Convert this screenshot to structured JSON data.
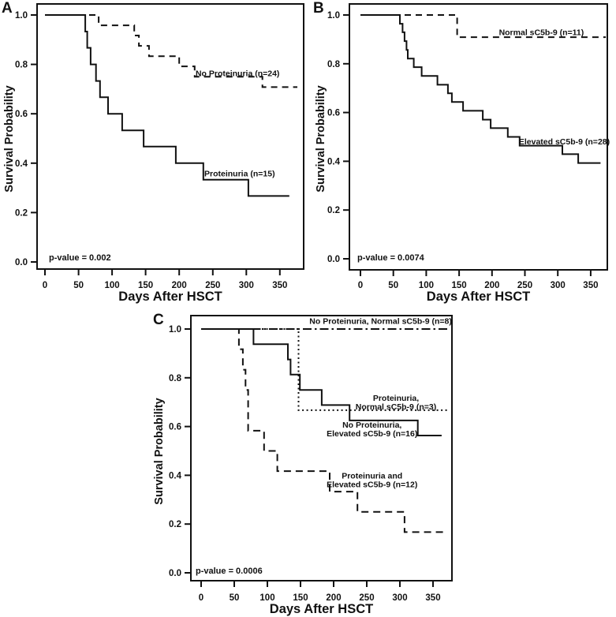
{
  "figure": {
    "description": "Kaplan-Meier survival curves after HSCT, three panels",
    "background_color": "#ffffff",
    "line_color": "#111111"
  },
  "chart_data": [
    {
      "panel": "A",
      "type": "line",
      "subtype": "kaplan-meier-step",
      "xlabel": "Days After HSCT",
      "ylabel": "Survival Probability",
      "x_ticks": [
        0,
        50,
        100,
        150,
        200,
        250,
        300,
        350
      ],
      "y_tick_labels": [
        "1.0",
        "0.8",
        "0.6",
        "0.4",
        "0.2",
        "0.0"
      ],
      "xlim": [
        0,
        385
      ],
      "ylim": [
        0.0,
        1.0
      ],
      "grid": false,
      "legend_position": "inline-annotations",
      "p_value_text": "p-value = 0.002",
      "series": [
        {
          "name": "No Proteinuria",
          "n": 24,
          "style": "dashed",
          "label_lines": [
            "No Proteinuria (n=24)"
          ],
          "label_pos": {
            "day": 287,
            "survival": 0.765
          },
          "start": [
            0,
            1.0
          ],
          "steps": [
            [
              80,
              0.958
            ],
            [
              133,
              0.917
            ],
            [
              140,
              0.875
            ],
            [
              155,
              0.833
            ],
            [
              200,
              0.792
            ],
            [
              223,
              0.75
            ],
            [
              324,
              0.708
            ]
          ],
          "end_day": 376
        },
        {
          "name": "Proteinuria",
          "n": 15,
          "style": "solid",
          "label_lines": [
            "Proteinuria (n=15)"
          ],
          "label_pos": {
            "day": 290,
            "survival": 0.358
          },
          "start": [
            0,
            1.0
          ],
          "steps": [
            [
              60,
              0.933
            ],
            [
              63,
              0.867
            ],
            [
              68,
              0.8
            ],
            [
              76,
              0.733
            ],
            [
              82,
              0.667
            ],
            [
              94,
              0.6
            ],
            [
              115,
              0.533
            ],
            [
              147,
              0.467
            ],
            [
              195,
              0.4
            ],
            [
              236,
              0.333
            ],
            [
              303,
              0.267
            ]
          ],
          "end_day": 364
        }
      ]
    },
    {
      "panel": "B",
      "type": "line",
      "subtype": "kaplan-meier-step",
      "xlabel": "Days After HSCT",
      "ylabel": "Survival Probability",
      "x_ticks": [
        0,
        50,
        100,
        150,
        200,
        250,
        300,
        350
      ],
      "y_tick_labels": [
        "1.0",
        "0.8",
        "0.6",
        "0.4",
        "0.2",
        "0.0"
      ],
      "xlim": [
        0,
        385
      ],
      "ylim": [
        0.0,
        1.0
      ],
      "grid": false,
      "legend_position": "inline-annotations",
      "p_value_text": "p-value = 0.0074",
      "series": [
        {
          "name": "Normal sC5b-9",
          "n": 11,
          "style": "dashed",
          "label_lines": [
            "Normal sC5b-9 (n=11)"
          ],
          "label_pos": {
            "day": 275,
            "survival": 0.929
          },
          "start": [
            0,
            1.0
          ],
          "steps": [
            [
              147,
              0.909
            ]
          ],
          "end_day": 373
        },
        {
          "name": "Elevated sC5b-9",
          "n": 28,
          "style": "solid",
          "label_lines": [
            "Elevated sC5b-9 (n=28)"
          ],
          "label_pos": {
            "day": 310,
            "survival": 0.482
          },
          "start": [
            0,
            1.0
          ],
          "steps": [
            [
              60,
              0.964
            ],
            [
              64,
              0.929
            ],
            [
              67,
              0.893
            ],
            [
              70,
              0.857
            ],
            [
              72,
              0.821
            ],
            [
              81,
              0.786
            ],
            [
              93,
              0.75
            ],
            [
              117,
              0.714
            ],
            [
              133,
              0.679
            ],
            [
              139,
              0.643
            ],
            [
              156,
              0.607
            ],
            [
              186,
              0.571
            ],
            [
              198,
              0.536
            ],
            [
              224,
              0.5
            ],
            [
              242,
              0.464
            ],
            [
              307,
              0.429
            ],
            [
              331,
              0.393
            ]
          ],
          "end_day": 365
        }
      ]
    },
    {
      "panel": "C",
      "type": "line",
      "subtype": "kaplan-meier-step",
      "xlabel": "Days After HSCT",
      "ylabel": "Survival Probability",
      "x_ticks": [
        0,
        50,
        100,
        150,
        200,
        250,
        300,
        350
      ],
      "y_tick_labels": [
        "1.0",
        "0.8",
        "0.6",
        "0.4",
        "0.2",
        "0.0"
      ],
      "xlim": [
        0,
        385
      ],
      "ylim": [
        0.0,
        1.0
      ],
      "grid": false,
      "legend_position": "inline-annotations",
      "p_value_text": "p-value = 0.0006",
      "series": [
        {
          "name": "No Proteinuria, Normal sC5b-9",
          "n": 8,
          "style": "dashdot",
          "label_lines": [
            "No Proteinuria, Normal sC5b-9 (n=8)"
          ],
          "label_pos": {
            "day": 271,
            "survival": 1.034
          },
          "start": [
            0,
            1.0
          ],
          "steps": [],
          "end_day": 375
        },
        {
          "name": "Proteinuria, Normal sC5b-9",
          "n": 3,
          "style": "dotted",
          "label_lines": [
            "Proteinuria,",
            "Normal sC5b-9 (n=3)"
          ],
          "label_pos": {
            "day": 294,
            "survival": 0.7
          },
          "start": [
            0,
            1.0
          ],
          "steps": [
            [
              147,
              0.667
            ]
          ],
          "end_day": 372
        },
        {
          "name": "No Proteinuria, Elevated sC5b-9",
          "n": 16,
          "style": "solid",
          "label_lines": [
            "No Proteinuria,",
            "Elevated sC5b-9 (n=16)"
          ],
          "label_pos": {
            "day": 258,
            "survival": 0.59
          },
          "start": [
            0,
            1.0
          ],
          "steps": [
            [
              79,
              0.938
            ],
            [
              131,
              0.875
            ],
            [
              135,
              0.813
            ],
            [
              149,
              0.75
            ],
            [
              182,
              0.688
            ],
            [
              224,
              0.625
            ],
            [
              327,
              0.563
            ]
          ],
          "end_day": 363
        },
        {
          "name": "Proteinuria and Elevated sC5b-9",
          "n": 12,
          "style": "longdash",
          "label_lines": [
            "Proteinuria and",
            "Elevated sC5b-9 (n=12)"
          ],
          "label_pos": {
            "day": 258,
            "survival": 0.382
          },
          "start": [
            0,
            1.0
          ],
          "steps": [
            [
              57,
              0.917
            ],
            [
              63,
              0.833
            ],
            [
              67,
              0.75
            ],
            [
              71,
              0.583
            ],
            [
              95,
              0.5
            ],
            [
              115,
              0.417
            ],
            [
              194,
              0.333
            ],
            [
              236,
              0.25
            ],
            [
              307,
              0.167
            ]
          ],
          "end_day": 365
        }
      ]
    }
  ]
}
